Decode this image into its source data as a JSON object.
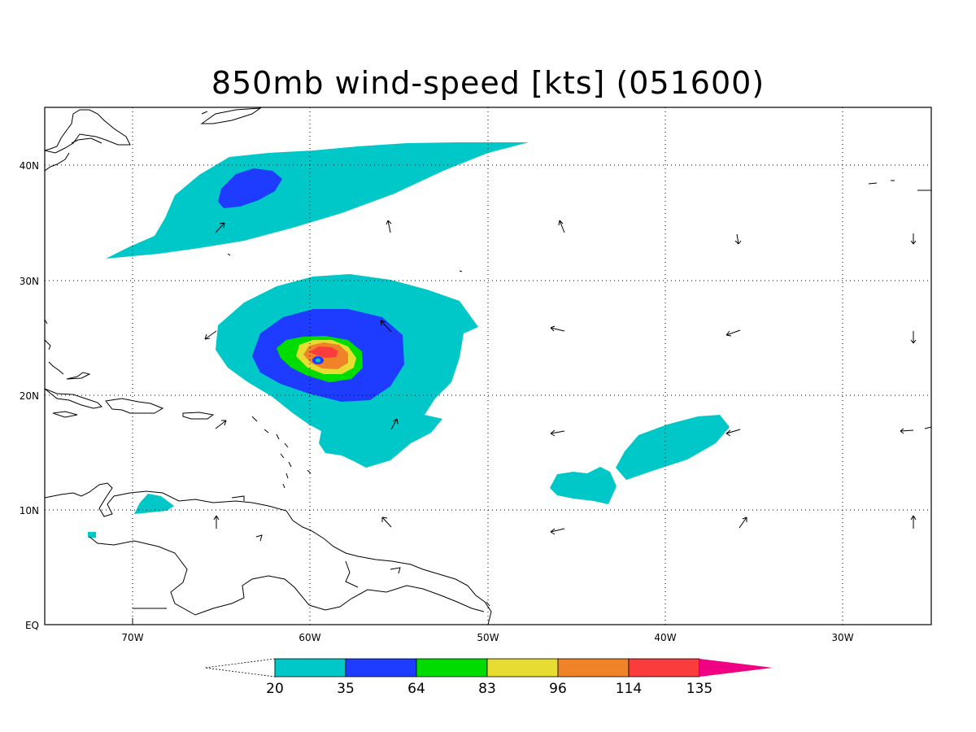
{
  "title": "850mb wind-speed [kts] (051600)",
  "map": {
    "lat_labels": [
      "40N",
      "30N",
      "20N",
      "10N",
      "EQ"
    ],
    "lon_labels": [
      "70W",
      "60W",
      "50W",
      "40W",
      "30W"
    ],
    "region": {
      "lon_range": [
        -75,
        -25
      ],
      "lat_range": [
        0,
        45
      ]
    }
  },
  "colorbar": {
    "levels": [
      "20",
      "35",
      "64",
      "83",
      "96",
      "114",
      "135"
    ],
    "colors": [
      "#00c8c8",
      "#1e3cff",
      "#00dc00",
      "#e6dc32",
      "#f08228",
      "#fa3c3c",
      "#f00082"
    ],
    "below_min": "white",
    "above_max": "#f00082"
  },
  "colors": {
    "c20": "#00c8c8",
    "c35": "#1e3cff",
    "c64": "#00dc00",
    "c83": "#e6dc32",
    "c96": "#f08228",
    "c114": "#fa3c3c",
    "c135": "#f00082"
  }
}
